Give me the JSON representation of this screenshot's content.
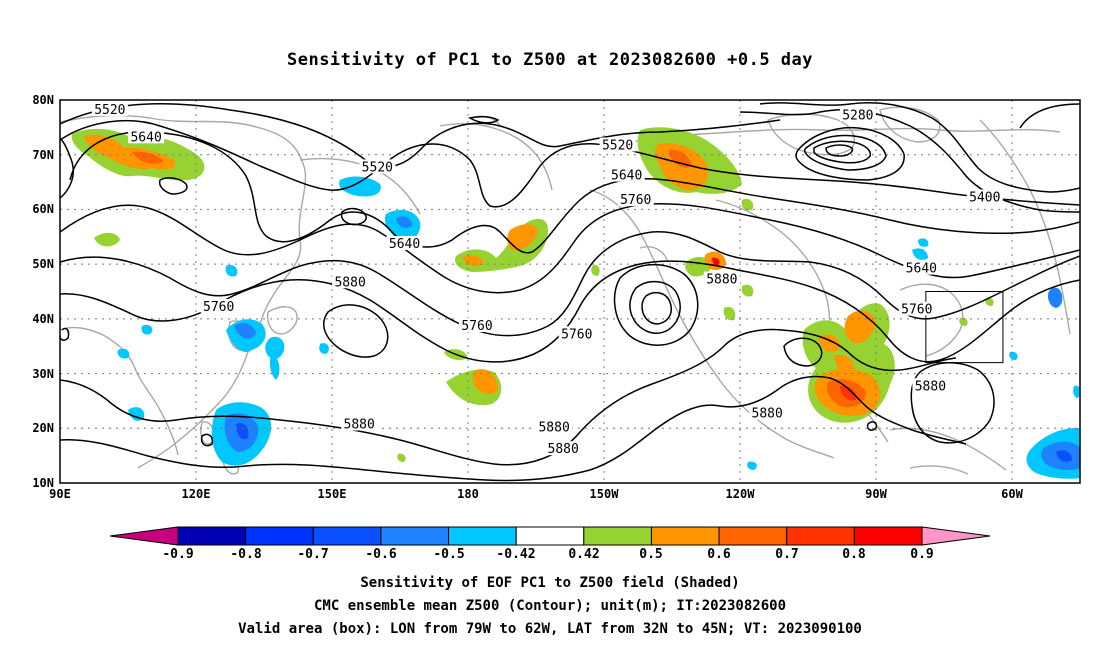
{
  "title": "Sensitivity of PC1 to Z500 at 2023082600 +0.5 day",
  "map": {
    "lat_labels": [
      "80N",
      "70N",
      "60N",
      "50N",
      "40N",
      "30N",
      "20N",
      "10N"
    ],
    "lon_labels": [
      "90E",
      "120E",
      "150E",
      "180",
      "150W",
      "120W",
      "90W",
      "60W"
    ],
    "extent": {
      "lon_min": 90,
      "lon_max": 315,
      "lat_min": 10,
      "lat_max": 80
    },
    "contour_labels": [
      {
        "text": "5520",
        "lon": 101,
        "lat": 78.0
      },
      {
        "text": "5640",
        "lon": 109,
        "lat": 73.0
      },
      {
        "text": "5520",
        "lon": 160,
        "lat": 67.5
      },
      {
        "text": "5640",
        "lon": 166,
        "lat": 53.5
      },
      {
        "text": "5760",
        "lon": 125,
        "lat": 42.0
      },
      {
        "text": "5880",
        "lon": 154,
        "lat": 46.5
      },
      {
        "text": "5760",
        "lon": 182,
        "lat": 38.5
      },
      {
        "text": "5880",
        "lon": 156,
        "lat": 20.5
      },
      {
        "text": "5520",
        "lon": 213,
        "lat": 71.5
      },
      {
        "text": "5640",
        "lon": 215,
        "lat": 66.0
      },
      {
        "text": "5760",
        "lon": 217,
        "lat": 61.5
      },
      {
        "text": "5760",
        "lon": 204,
        "lat": 37.0
      },
      {
        "text": "5880",
        "lon": 199,
        "lat": 20.0
      },
      {
        "text": "5880",
        "lon": 201,
        "lat": 16.0
      },
      {
        "text": "5280",
        "lon": 266,
        "lat": 77.0
      },
      {
        "text": "5400",
        "lon": 294,
        "lat": 62.0
      },
      {
        "text": "5640",
        "lon": 280,
        "lat": 49.0
      },
      {
        "text": "5760",
        "lon": 279,
        "lat": 41.5
      },
      {
        "text": "5880",
        "lon": 236,
        "lat": 47.0
      },
      {
        "text": "5880",
        "lon": 282,
        "lat": 27.5
      },
      {
        "text": "5880",
        "lon": 246,
        "lat": 22.5
      }
    ],
    "valid_box": {
      "lon_w": -79,
      "lon_e": -62,
      "lat_s": 32,
      "lat_n": 45
    }
  },
  "colorbar": {
    "labels": [
      "-0.9",
      "-0.8",
      "-0.7",
      "-0.6",
      "-0.5",
      "-0.42",
      "0.42",
      "0.5",
      "0.6",
      "0.7",
      "0.8",
      "0.9"
    ],
    "colors": [
      "#0000b4",
      "#0032ff",
      "#0a50ff",
      "#1e82ff",
      "#00c8ff",
      "#ffffff",
      "#96d232",
      "#ff9600",
      "#ff6400",
      "#ff3200",
      "#ff0000"
    ],
    "low_end_color": "#c8007e",
    "high_end_color": "#ff96c8"
  },
  "captions": [
    "Sensitivity of EOF PC1 to Z500 field (Shaded)",
    "CMC ensemble mean Z500 (Contour); unit(m); IT:2023082600",
    "Valid area (box): LON from 79W to 62W, LAT from 32N to 45N; VT: 2023090100"
  ]
}
